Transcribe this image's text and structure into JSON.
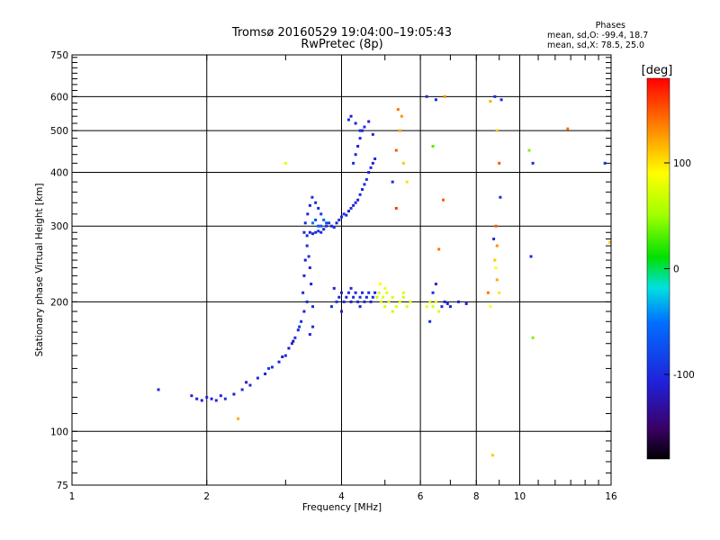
{
  "chart_data": {
    "type": "scatter",
    "title": "Tromsø 20160529 19:04:00–19:05:43",
    "subtitle": "RwPretec (8p)",
    "xlabel": "Frequency [MHz]",
    "ylabel": "Stationary phase Virtual Height [km]",
    "xscale": "log",
    "yscale": "log",
    "xlim": [
      1,
      16
    ],
    "ylim": [
      75,
      750
    ],
    "x_ticks": [
      1,
      2,
      4,
      6,
      8,
      10,
      16
    ],
    "x_tick_labels": [
      "1",
      "2",
      "4",
      "6",
      "8",
      "10",
      "16"
    ],
    "y_ticks": [
      75,
      100,
      200,
      300,
      400,
      500,
      600,
      750
    ],
    "y_tick_labels": [
      "75",
      "100",
      "200",
      "300",
      "400",
      "500",
      "600",
      "750"
    ],
    "grid": true,
    "stats": {
      "header": "Phases",
      "line1": "mean, sd,O: -99.4, 18.7",
      "line2": "mean, sd,X:  78.5, 25.0"
    },
    "colorbar": {
      "label": "[deg]",
      "range": [
        -180,
        180
      ],
      "ticks": [
        100,
        0,
        -100
      ],
      "tick_labels": [
        "100",
        "0",
        "-100"
      ]
    },
    "series": [
      {
        "points": [
          [
            1.56,
            125,
            -100
          ],
          [
            1.85,
            121,
            -105
          ],
          [
            1.9,
            119,
            -110
          ],
          [
            1.95,
            118,
            -105
          ],
          [
            2.0,
            120,
            -100
          ],
          [
            2.05,
            119,
            -110
          ],
          [
            2.1,
            118,
            -105
          ],
          [
            2.15,
            121,
            -100
          ],
          [
            2.2,
            119,
            -95
          ],
          [
            2.3,
            122,
            -110
          ],
          [
            2.4,
            125,
            -100
          ],
          [
            2.5,
            128,
            -105
          ],
          [
            2.6,
            133,
            -100
          ],
          [
            2.7,
            136,
            -110
          ],
          [
            2.8,
            141,
            -100
          ],
          [
            2.9,
            145,
            -105
          ],
          [
            3.0,
            150,
            -100
          ],
          [
            3.05,
            156,
            -110
          ],
          [
            3.1,
            160,
            -100
          ],
          [
            3.15,
            165,
            -95
          ],
          [
            3.2,
            172,
            -105
          ],
          [
            3.25,
            180,
            -100
          ],
          [
            3.3,
            190,
            -110
          ],
          [
            3.35,
            200,
            -100
          ],
          [
            3.4,
            168,
            -105
          ],
          [
            3.45,
            175,
            -100
          ],
          [
            2.45,
            130,
            -120
          ],
          [
            2.75,
            140,
            -90
          ],
          [
            2.95,
            149,
            -115
          ],
          [
            3.12,
            162,
            -130
          ],
          [
            3.22,
            175,
            -90
          ],
          [
            3.28,
            210,
            -100
          ],
          [
            3.3,
            230,
            -105
          ],
          [
            3.32,
            250,
            -110
          ],
          [
            3.35,
            270,
            -100
          ],
          [
            3.38,
            255,
            -95
          ],
          [
            3.4,
            240,
            -105
          ],
          [
            3.42,
            220,
            -110
          ],
          [
            3.45,
            195,
            -100
          ],
          [
            3.3,
            290,
            -105
          ],
          [
            3.35,
            285,
            -100
          ],
          [
            3.4,
            290,
            -110
          ],
          [
            3.45,
            288,
            -105
          ],
          [
            3.5,
            290,
            -100
          ],
          [
            3.55,
            292,
            -95
          ],
          [
            3.6,
            290,
            -105
          ],
          [
            3.65,
            295,
            -110
          ],
          [
            3.7,
            300,
            -100
          ],
          [
            3.75,
            305,
            -90
          ],
          [
            3.8,
            300,
            -105
          ],
          [
            3.85,
            298,
            -100
          ],
          [
            3.9,
            305,
            -110
          ],
          [
            3.95,
            310,
            -100
          ],
          [
            4.0,
            315,
            -105
          ],
          [
            4.05,
            320,
            -95
          ],
          [
            4.1,
            318,
            -100
          ],
          [
            4.15,
            325,
            -110
          ],
          [
            4.2,
            330,
            -100
          ],
          [
            4.25,
            335,
            -105
          ],
          [
            4.3,
            340,
            -100
          ],
          [
            4.35,
            345,
            -110
          ],
          [
            4.4,
            355,
            -100
          ],
          [
            4.45,
            365,
            -105
          ],
          [
            4.5,
            375,
            -100
          ],
          [
            4.55,
            385,
            -95
          ],
          [
            4.6,
            400,
            -105
          ],
          [
            4.65,
            410,
            -100
          ],
          [
            4.7,
            420,
            -110
          ],
          [
            4.75,
            430,
            -100
          ],
          [
            3.32,
            305,
            -100
          ],
          [
            3.36,
            320,
            -105
          ],
          [
            3.4,
            335,
            -110
          ],
          [
            3.44,
            350,
            -100
          ],
          [
            3.5,
            340,
            -105
          ],
          [
            3.55,
            330,
            -100
          ],
          [
            3.6,
            320,
            -90
          ],
          [
            3.5,
            310,
            -80
          ],
          [
            3.6,
            300,
            -70
          ],
          [
            3.65,
            310,
            -60
          ],
          [
            3.7,
            305,
            -75
          ],
          [
            3.55,
            300,
            -65
          ],
          [
            3.45,
            305,
            -50
          ],
          [
            4.25,
            420,
            -100
          ],
          [
            4.3,
            440,
            -105
          ],
          [
            4.35,
            460,
            -110
          ],
          [
            4.4,
            480,
            -100
          ],
          [
            4.45,
            500,
            -105
          ],
          [
            4.15,
            530,
            -100
          ],
          [
            4.2,
            540,
            -110
          ],
          [
            4.3,
            520,
            -105
          ],
          [
            4.4,
            500,
            -100
          ],
          [
            4.5,
            510,
            -95
          ],
          [
            4.6,
            525,
            -105
          ],
          [
            4.7,
            490,
            -100
          ],
          [
            3.0,
            420,
            80
          ],
          [
            3.9,
            200,
            -100
          ],
          [
            3.95,
            205,
            -105
          ],
          [
            4.0,
            210,
            -110
          ],
          [
            4.05,
            200,
            -100
          ],
          [
            4.1,
            205,
            -105
          ],
          [
            4.15,
            210,
            -100
          ],
          [
            4.2,
            200,
            -110
          ],
          [
            4.25,
            205,
            -100
          ],
          [
            4.3,
            210,
            -105
          ],
          [
            4.35,
            200,
            -100
          ],
          [
            4.4,
            205,
            -95
          ],
          [
            4.45,
            210,
            -105
          ],
          [
            4.5,
            200,
            -100
          ],
          [
            4.55,
            205,
            -110
          ],
          [
            4.6,
            210,
            -100
          ],
          [
            4.65,
            200,
            -105
          ],
          [
            4.7,
            205,
            -100
          ],
          [
            4.75,
            210,
            -110
          ],
          [
            3.8,
            195,
            -100
          ],
          [
            3.85,
            215,
            -105
          ],
          [
            4.0,
            190,
            -110
          ],
          [
            4.2,
            215,
            -100
          ],
          [
            4.4,
            195,
            -105
          ],
          [
            4.8,
            205,
            60
          ],
          [
            4.85,
            210,
            70
          ],
          [
            4.9,
            200,
            75
          ],
          [
            4.95,
            205,
            80
          ],
          [
            5.0,
            195,
            70
          ],
          [
            5.05,
            210,
            75
          ],
          [
            5.1,
            200,
            80
          ],
          [
            5.2,
            205,
            70
          ],
          [
            5.3,
            195,
            75
          ],
          [
            5.4,
            200,
            80
          ],
          [
            5.5,
            205,
            70
          ],
          [
            5.6,
            195,
            75
          ],
          [
            5.7,
            200,
            80
          ],
          [
            4.88,
            220,
            90
          ],
          [
            5.0,
            215,
            85
          ],
          [
            5.2,
            190,
            65
          ],
          [
            5.5,
            210,
            75
          ],
          [
            6.2,
            195,
            80
          ],
          [
            6.3,
            200,
            75
          ],
          [
            6.4,
            195,
            70
          ],
          [
            6.5,
            200,
            80
          ],
          [
            6.6,
            190,
            75
          ],
          [
            6.7,
            195,
            -100
          ],
          [
            6.8,
            200,
            -105
          ],
          [
            6.9,
            198,
            -100
          ],
          [
            7.0,
            195,
            -110
          ],
          [
            7.3,
            200,
            -100
          ],
          [
            7.6,
            198,
            -105
          ],
          [
            6.4,
            210,
            -100
          ],
          [
            6.5,
            220,
            -105
          ],
          [
            6.3,
            180,
            -100
          ],
          [
            5.35,
            560,
            140
          ],
          [
            5.45,
            540,
            130
          ],
          [
            5.4,
            500,
            120
          ],
          [
            5.3,
            450,
            150
          ],
          [
            5.5,
            420,
            110
          ],
          [
            5.6,
            380,
            100
          ],
          [
            5.2,
            380,
            -100
          ],
          [
            5.3,
            330,
            160
          ],
          [
            6.2,
            600,
            -100
          ],
          [
            6.5,
            590,
            -105
          ],
          [
            6.8,
            600,
            130
          ],
          [
            6.4,
            460,
            30
          ],
          [
            6.75,
            345,
            150
          ],
          [
            6.6,
            265,
            140
          ],
          [
            8.6,
            585,
            120
          ],
          [
            8.8,
            600,
            -100
          ],
          [
            9.1,
            590,
            -105
          ],
          [
            8.9,
            500,
            110
          ],
          [
            8.85,
            300,
            150
          ],
          [
            8.9,
            270,
            130
          ],
          [
            8.8,
            250,
            110
          ],
          [
            8.85,
            240,
            90
          ],
          [
            8.9,
            225,
            120
          ],
          [
            9.0,
            210,
            100
          ],
          [
            9.05,
            350,
            -100
          ],
          [
            8.6,
            195,
            90
          ],
          [
            8.75,
            280,
            -100
          ],
          [
            8.5,
            210,
            140
          ],
          [
            10.5,
            450,
            40
          ],
          [
            10.7,
            420,
            -100
          ],
          [
            10.6,
            255,
            -100
          ],
          [
            10.7,
            165,
            40
          ],
          [
            12.8,
            505,
            140
          ],
          [
            15.5,
            420,
            -100
          ],
          [
            15.9,
            275,
            110
          ],
          [
            8.7,
            88,
            110
          ],
          [
            2.35,
            107,
            120
          ],
          [
            9.0,
            420,
            150
          ]
        ]
      }
    ]
  }
}
